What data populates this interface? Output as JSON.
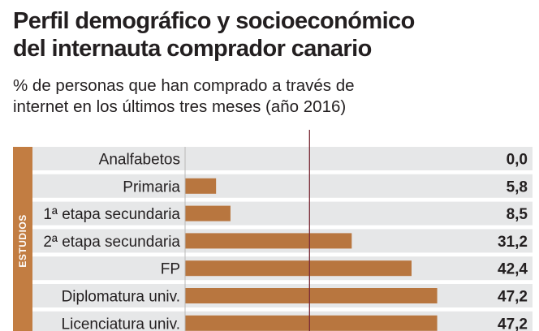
{
  "header": {
    "title_line1": "Perfil demográfico y socioeconómico",
    "title_line2": "del internauta comprador canario",
    "subtitle_line1": "% de personas que han comprado a través de",
    "subtitle_line2": "internet en los últimos tres meses (año 2016)"
  },
  "colors": {
    "bar": "#b8763f",
    "row_band": "#e6e7e8",
    "group_band": "#c27d42",
    "reference_line": "#7a2a36"
  },
  "chart_data": {
    "type": "bar",
    "orientation": "horizontal",
    "title": "Perfil demográfico y socioeconómico del internauta comprador canario",
    "subtitle": "% de personas que han comprado a través de internet en los últimos tres meses (año 2016)",
    "group_label": "ESTUDIOS",
    "categories": [
      "Analfabetos",
      "Primaria",
      "1ª etapa secundaria",
      "2ª etapa secundaria",
      "FP",
      "Diplomatura univ.",
      "Licenciatura univ."
    ],
    "values": [
      0.0,
      5.8,
      8.5,
      31.2,
      42.4,
      47.2,
      47.2
    ],
    "value_labels": [
      "0,0",
      "5,8",
      "8,5",
      "31,2",
      "42,4",
      "47,2",
      "47,2"
    ],
    "xlim": [
      0,
      60
    ],
    "reference_value": 23.3,
    "xlabel": "",
    "ylabel": ""
  }
}
